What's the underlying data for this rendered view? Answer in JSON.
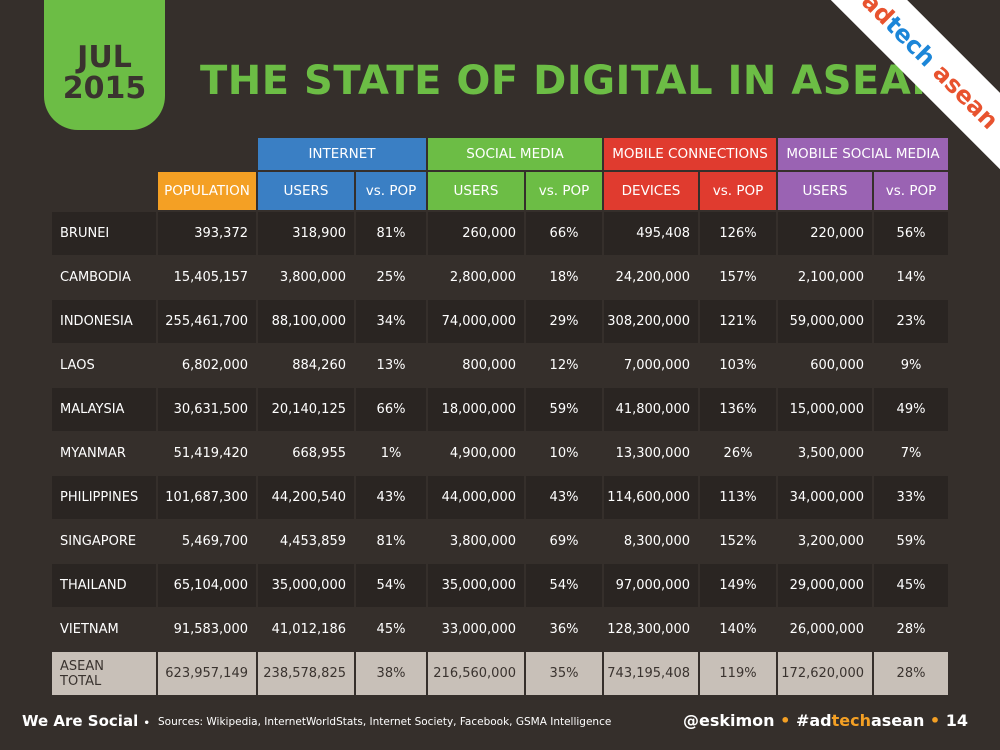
{
  "badge": {
    "month": "JUL",
    "year": "2015"
  },
  "title": "THE STATE OF DIGITAL IN ASEAN",
  "corner_brand": {
    "part1": "ad",
    "part2": "tech",
    "part3": "asean"
  },
  "colors": {
    "green": "#6cbd45",
    "blue": "#3a7fc4",
    "red": "#e03b2f",
    "purple": "#9a63b3",
    "orange": "#f4a024",
    "background": "#352f2b"
  },
  "groups": {
    "internet": "INTERNET",
    "social_media": "SOCIAL MEDIA",
    "mobile_connections": "MOBILE CONNECTIONS",
    "mobile_social_media": "MOBILE SOCIAL MEDIA"
  },
  "subheaders": {
    "population": "POPULATION",
    "internet_users": "USERS",
    "internet_vs": "vs. POP",
    "social_users": "USERS",
    "social_vs": "vs. POP",
    "mobile_devices": "DEVICES",
    "mobile_vs": "vs. POP",
    "msm_users": "USERS",
    "msm_vs": "vs. POP"
  },
  "rows": [
    {
      "country": "BRUNEI",
      "population": "393,372",
      "internet_users": "318,900",
      "internet_pct": "81%",
      "social_users": "260,000",
      "social_pct": "66%",
      "mobile_devices": "495,408",
      "mobile_pct": "126%",
      "msm_users": "220,000",
      "msm_pct": "56%"
    },
    {
      "country": "CAMBODIA",
      "population": "15,405,157",
      "internet_users": "3,800,000",
      "internet_pct": "25%",
      "social_users": "2,800,000",
      "social_pct": "18%",
      "mobile_devices": "24,200,000",
      "mobile_pct": "157%",
      "msm_users": "2,100,000",
      "msm_pct": "14%"
    },
    {
      "country": "INDONESIA",
      "population": "255,461,700",
      "internet_users": "88,100,000",
      "internet_pct": "34%",
      "social_users": "74,000,000",
      "social_pct": "29%",
      "mobile_devices": "308,200,000",
      "mobile_pct": "121%",
      "msm_users": "59,000,000",
      "msm_pct": "23%"
    },
    {
      "country": "LAOS",
      "population": "6,802,000",
      "internet_users": "884,260",
      "internet_pct": "13%",
      "social_users": "800,000",
      "social_pct": "12%",
      "mobile_devices": "7,000,000",
      "mobile_pct": "103%",
      "msm_users": "600,000",
      "msm_pct": "9%"
    },
    {
      "country": "MALAYSIA",
      "population": "30,631,500",
      "internet_users": "20,140,125",
      "internet_pct": "66%",
      "social_users": "18,000,000",
      "social_pct": "59%",
      "mobile_devices": "41,800,000",
      "mobile_pct": "136%",
      "msm_users": "15,000,000",
      "msm_pct": "49%"
    },
    {
      "country": "MYANMAR",
      "population": "51,419,420",
      "internet_users": "668,955",
      "internet_pct": "1%",
      "social_users": "4,900,000",
      "social_pct": "10%",
      "mobile_devices": "13,300,000",
      "mobile_pct": "26%",
      "msm_users": "3,500,000",
      "msm_pct": "7%"
    },
    {
      "country": "PHILIPPINES",
      "population": "101,687,300",
      "internet_users": "44,200,540",
      "internet_pct": "43%",
      "social_users": "44,000,000",
      "social_pct": "43%",
      "mobile_devices": "114,600,000",
      "mobile_pct": "113%",
      "msm_users": "34,000,000",
      "msm_pct": "33%"
    },
    {
      "country": "SINGAPORE",
      "population": "5,469,700",
      "internet_users": "4,453,859",
      "internet_pct": "81%",
      "social_users": "3,800,000",
      "social_pct": "69%",
      "mobile_devices": "8,300,000",
      "mobile_pct": "152%",
      "msm_users": "3,200,000",
      "msm_pct": "59%"
    },
    {
      "country": "THAILAND",
      "population": "65,104,000",
      "internet_users": "35,000,000",
      "internet_pct": "54%",
      "social_users": "35,000,000",
      "social_pct": "54%",
      "mobile_devices": "97,000,000",
      "mobile_pct": "149%",
      "msm_users": "29,000,000",
      "msm_pct": "45%"
    },
    {
      "country": "VIETNAM",
      "population": "91,583,000",
      "internet_users": "41,012,186",
      "internet_pct": "45%",
      "social_users": "33,000,000",
      "social_pct": "36%",
      "mobile_devices": "128,300,000",
      "mobile_pct": "140%",
      "msm_users": "26,000,000",
      "msm_pct": "28%"
    }
  ],
  "total": {
    "country": "ASEAN TOTAL",
    "population": "623,957,149",
    "internet_users": "238,578,825",
    "internet_pct": "38%",
    "social_users": "216,560,000",
    "social_pct": "35%",
    "mobile_devices": "743,195,408",
    "mobile_pct": "119%",
    "msm_users": "172,620,000",
    "msm_pct": "28%"
  },
  "footer": {
    "brand": "We Are Social",
    "bullet": "•",
    "sources": "Sources: Wikipedia, InternetWorldStats, Internet Society, Facebook, GSMA Intelligence",
    "handle": "@eskimon",
    "sep1": "•",
    "hashtag_pre": "#ad",
    "hashtag_mid": "tech",
    "hashtag_post": "asean",
    "sep2": "•",
    "page": "14"
  }
}
